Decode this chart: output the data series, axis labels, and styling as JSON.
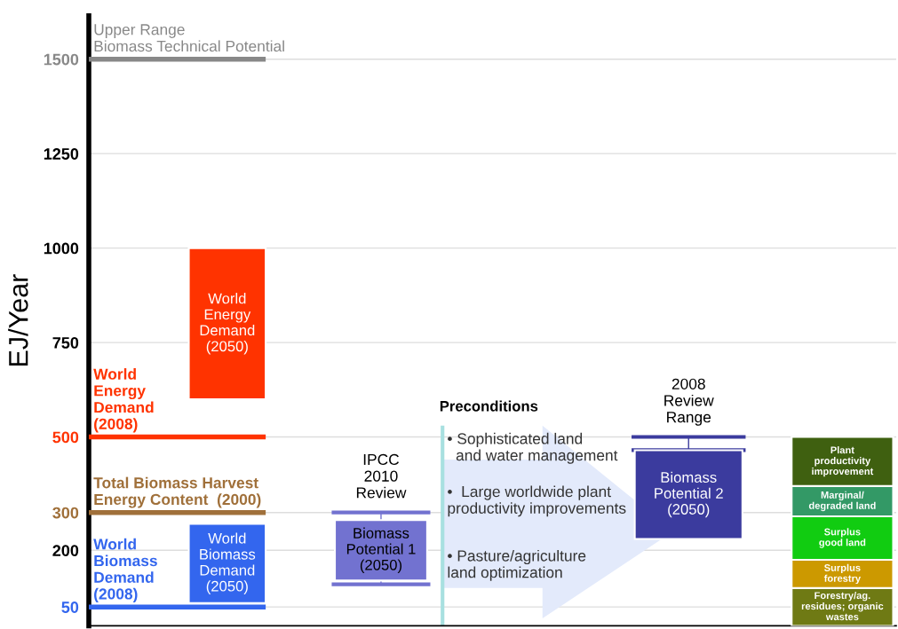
{
  "chart_data": {
    "type": "bar",
    "ylabel": "EJ/Year",
    "categories": [
      null,
      null,
      null,
      null,
      null
    ],
    "ylim": [
      0,
      1615
    ],
    "yticks": [
      50,
      200,
      300,
      500,
      750,
      1000,
      1250,
      1500
    ],
    "grid": "y",
    "series": [
      {
        "name": "World\nEnergy\nDemand\n(2050)",
        "color": "#ff3300",
        "values": [
          400,
          null,
          null,
          null,
          null
        ],
        "base": [
          600,
          null,
          null,
          null,
          null
        ]
      },
      {
        "name": "World\nBiomass\nDemand\n(2050)",
        "color": "#3366ee",
        "values": [
          210,
          null,
          null,
          null,
          null
        ],
        "base": [
          60,
          null,
          null,
          null,
          null
        ]
      },
      {
        "name": "Biomass\nPotential 1\n(2050)",
        "color": "#7272d0",
        "values": [
          null,
          160,
          null,
          null,
          null
        ],
        "base": [
          null,
          120,
          null,
          null,
          null
        ],
        "errors": [
          null,
          [
            110,
            300
          ],
          null,
          null,
          null
        ]
      },
      {
        "name": "Biomass\nPotential 2\n(2050)",
        "color": "#3b3b9e",
        "values": [
          null,
          null,
          null,
          235,
          null
        ],
        "base": [
          null,
          null,
          null,
          230,
          null
        ],
        "errors": [
          null,
          null,
          null,
          [
            465,
            500
          ],
          null
        ]
      },
      {
        "name": "Forestry/ag.\nresidues; organic\nwastes",
        "color": "#6f7a14",
        "values": [
          null,
          null,
          null,
          null,
          100
        ],
        "base": [
          null,
          null,
          null,
          null,
          0
        ]
      },
      {
        "name": "Surplus\nforestry",
        "color": "#cc9900",
        "values": [
          null,
          null,
          null,
          null,
          75
        ],
        "base": [
          null,
          null,
          null,
          null,
          100
        ]
      },
      {
        "name": "Surplus\ngood land",
        "color": "#11cc11",
        "values": [
          null,
          null,
          null,
          null,
          115
        ],
        "base": [
          null,
          null,
          null,
          null,
          175
        ]
      },
      {
        "name": "Marginal/\ndegraded land",
        "color": "#339966",
        "values": [
          null,
          null,
          null,
          null,
          80
        ],
        "base": [
          null,
          null,
          null,
          null,
          290
        ]
      },
      {
        "name": "Plant\nproductivity\nimprovement",
        "color": "#3f6010",
        "values": [
          null,
          null,
          null,
          null,
          130
        ],
        "base": [
          null,
          null,
          null,
          null,
          370
        ]
      }
    ],
    "ref_lines": [
      {
        "axis": "y",
        "value": 1500,
        "label": "Upper Range\nBiomass Technical Potential",
        "color": "#888888"
      },
      {
        "axis": "y",
        "value": 500,
        "label": "World\nEnergy\nDemand\n(2008)",
        "color": "#ff3300"
      },
      {
        "axis": "y",
        "value": 300,
        "label": "Total Biomass Harvest\nEnergy Content  (2000)",
        "color": "#a0703a"
      },
      {
        "axis": "y",
        "value": 50,
        "label": "World\nBiomass\nDemand\n(2008)",
        "color": "#3366ee"
      }
    ],
    "annotations": [
      "IPCC\n2010\nReview",
      "2008\nReview\nRange",
      "Preconditions",
      "• Sophisticated land\n  and water management",
      "•  Large worldwide plant\nproductivity improvements",
      "• Pasture/agriculture\nland optimization"
    ]
  }
}
